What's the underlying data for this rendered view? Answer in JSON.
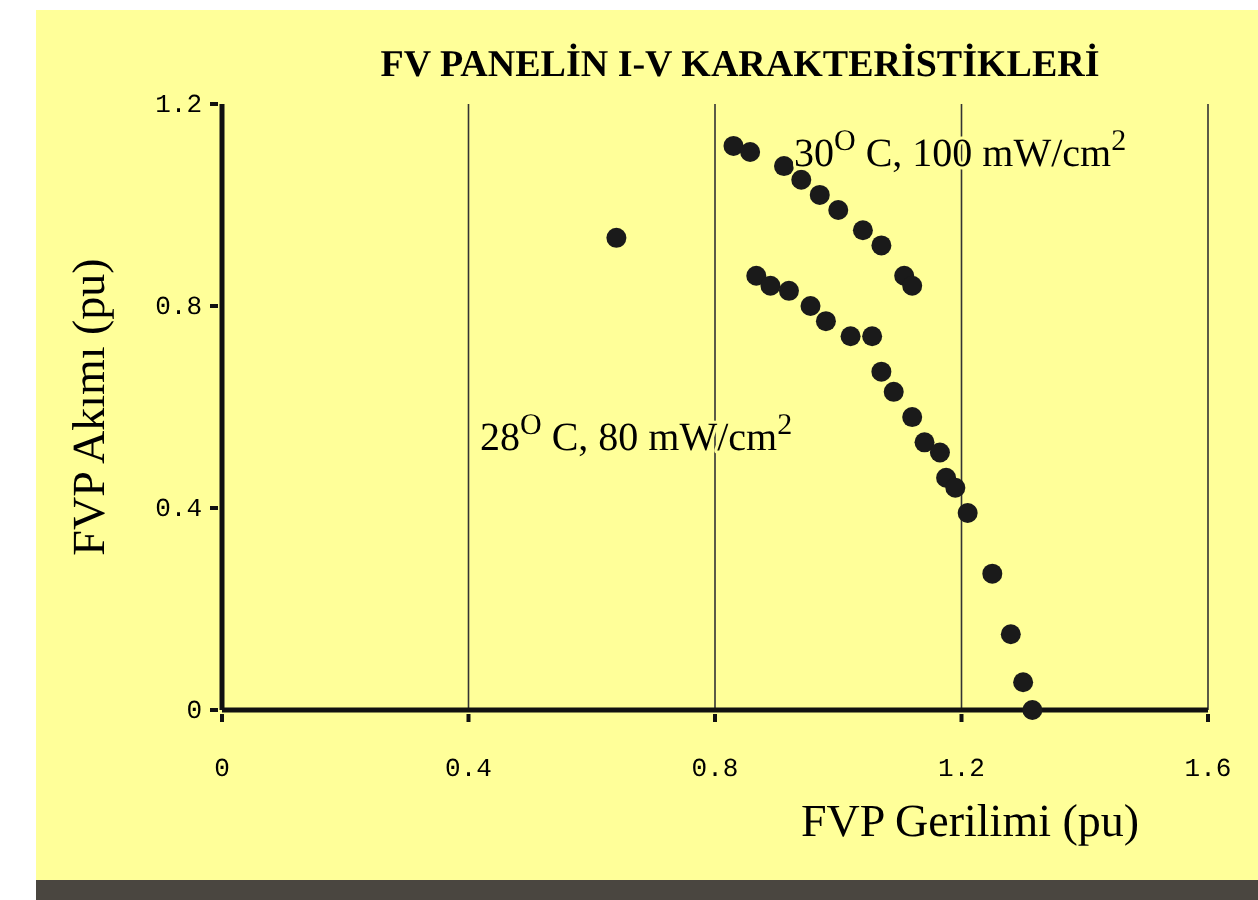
{
  "chart_data": {
    "type": "scatter",
    "title": "FV PANELİN  I-V KARAKTERİSTİKLERİ",
    "xlabel": "FVP Gerilimi (pu)",
    "ylabel": "FVP Akımı (pu)",
    "xlim": [
      0,
      1.6
    ],
    "ylim": [
      0,
      1.2
    ],
    "xticks": [
      0,
      0.4,
      0.8,
      1.2,
      1.6
    ],
    "yticks": [
      0,
      0.4,
      0.8,
      1.2
    ],
    "grid": "x",
    "marker": "circle",
    "series": [
      {
        "color": "#1a1a1a",
        "x": [
          0.83,
          0.857,
          0.912,
          0.94,
          0.97,
          1.0,
          1.04,
          1.07,
          1.107,
          1.12
        ],
        "values": [
          1.117,
          1.105,
          1.077,
          1.05,
          1.02,
          0.99,
          0.95,
          0.92,
          0.86,
          0.84
        ]
      },
      {
        "color": "#1a1a1a",
        "x": [
          0.64,
          0.867,
          0.89,
          0.92,
          0.955,
          0.98,
          1.02,
          1.055,
          1.07,
          1.09,
          1.12,
          1.14,
          1.165,
          1.175,
          1.19,
          1.21,
          1.25,
          1.28,
          1.3,
          1.315
        ],
        "values": [
          0.935,
          0.86,
          0.84,
          0.83,
          0.8,
          0.77,
          0.74,
          0.74,
          0.67,
          0.63,
          0.58,
          0.53,
          0.51,
          0.46,
          0.44,
          0.39,
          0.27,
          0.15,
          0.055,
          0.0
        ]
      }
    ],
    "annotations": [
      "30$^{O}$ C, 100 mW/cm$^{2}$",
      "28$^{O}$ C, 80 mW/cm$^{2}$"
    ]
  }
}
